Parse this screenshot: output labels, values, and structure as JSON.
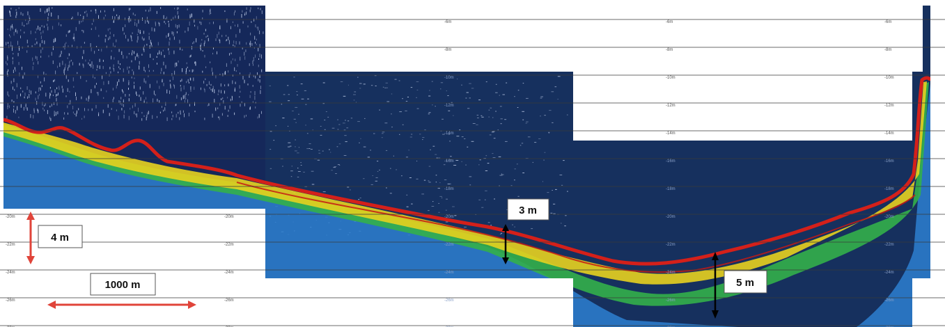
{
  "depth_labels": {
    "col1": [
      "-20m",
      "-22m",
      "-24m",
      "-26m",
      "-28m"
    ],
    "col2": [
      "-20m",
      "-22m",
      "-24m",
      "-26m",
      "-28m"
    ],
    "col3": [
      "-6m",
      "-8m",
      "-10m",
      "-12m",
      "-14m",
      "-16m",
      "-18m",
      "-20m",
      "-22m",
      "-24m",
      "-26m",
      "-28m"
    ],
    "col4": [
      "-6m",
      "-8m",
      "-10m",
      "-12m",
      "-14m",
      "-16m",
      "-18m",
      "-20m",
      "-22m",
      "-24m",
      "-26m",
      "-28m"
    ],
    "col5": [
      "-6m",
      "-8m",
      "-10m",
      "-12m",
      "-14m",
      "-16m",
      "-18m",
      "-20m",
      "-22m",
      "-24m",
      "-26m",
      "-28m"
    ]
  },
  "annotations": {
    "vertical_scale": "4 m",
    "horizontal_scale": "1000 m",
    "thickness_left": "3 m",
    "thickness_right": "5 m"
  },
  "colors": {
    "water": "#16305e",
    "water_dark": "#112450",
    "seabed_red": "#d4201a",
    "seabed_yellow": "#e7d21f",
    "seabed_green": "#33b04a",
    "seabed_blue": "#2d7fd0",
    "scale_arrow": "#e0443a",
    "thickness_arrow": "#000000",
    "gridline": "#3a3a3a"
  }
}
